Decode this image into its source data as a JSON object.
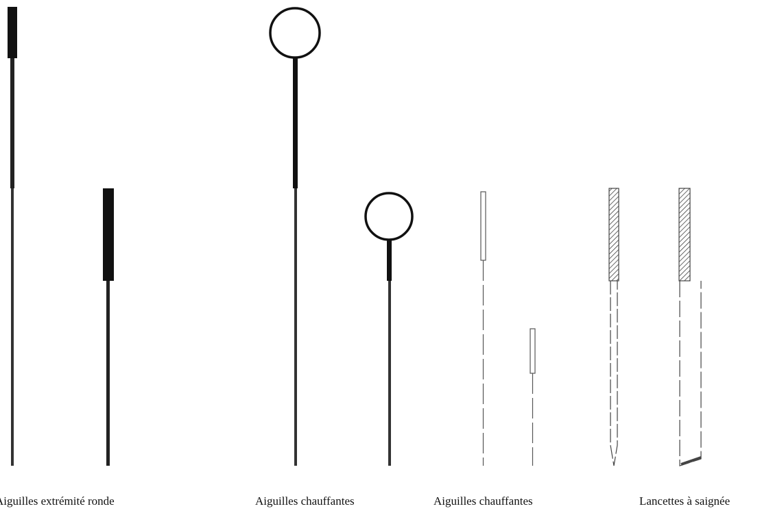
{
  "captions": [
    "Aiguilles extrémité ronde",
    "Aiguilles chauffantes",
    "Aiguilles chauffantes",
    "Lancettes à saignée"
  ]
}
